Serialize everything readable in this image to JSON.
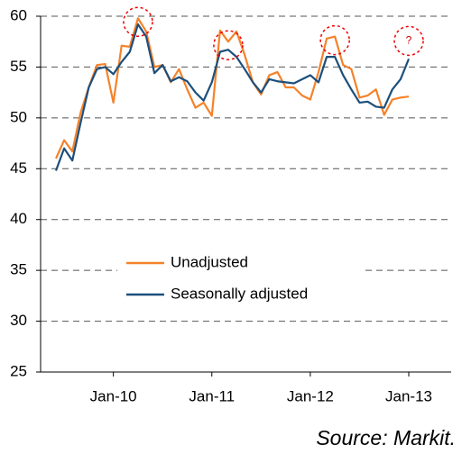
{
  "chart_data": {
    "type": "line",
    "categories": [
      null,
      null,
      null,
      null,
      null,
      null,
      null,
      "Jan-10",
      null,
      null,
      null,
      null,
      null,
      null,
      null,
      null,
      null,
      null,
      null,
      "Jan-11",
      null,
      null,
      null,
      null,
      null,
      null,
      null,
      null,
      null,
      null,
      null,
      "Jan-12",
      null,
      null,
      null,
      null,
      null,
      null,
      null,
      null,
      null,
      null,
      null,
      "Jan-13"
    ],
    "series": [
      {
        "name": "Unadjusted",
        "color": "#f5822a",
        "values": [
          46,
          47.8,
          46.7,
          50.5,
          53,
          55.2,
          55.3,
          51.5,
          57.1,
          57,
          59.8,
          58.5,
          55,
          55.2,
          53.5,
          54.8,
          52.8,
          51,
          51.5,
          50.2,
          58.6,
          57.5,
          58.5,
          56.2,
          53.5,
          52.3,
          54.2,
          54.5,
          53,
          53,
          52.2,
          51.8,
          54.5,
          57.8,
          58,
          55.2,
          54.8,
          52,
          52.2,
          52.8,
          50.3,
          51.8,
          52,
          52.1
        ]
      },
      {
        "name": "Seasonally adjusted",
        "color": "#1c4f7c",
        "values": [
          44.8,
          47,
          45.8,
          49.5,
          53,
          54.8,
          55,
          54.3,
          55.5,
          56.5,
          59.2,
          58,
          54.4,
          55.2,
          53.6,
          54,
          53.6,
          52.5,
          51.7,
          53.5,
          56.5,
          56.7,
          56,
          54.8,
          53.5,
          52.5,
          53.8,
          53.6,
          53.5,
          53.4,
          53.8,
          54.2,
          53.5,
          56,
          56,
          54.2,
          52.8,
          51.5,
          51.6,
          51.1,
          51,
          52.8,
          53.8,
          55.8
        ]
      }
    ],
    "ylim": [
      25,
      60
    ],
    "yticks": [
      25,
      30,
      35,
      40,
      45,
      50,
      55,
      60
    ],
    "grid": true,
    "annotation": "?",
    "source": "Source: Markit."
  }
}
